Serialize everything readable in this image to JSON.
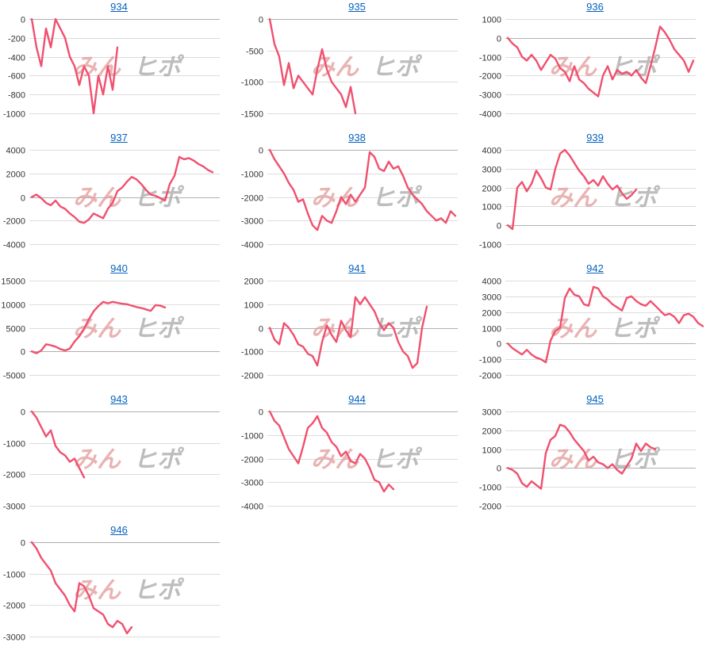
{
  "watermark": {
    "left": "みん",
    "right": "ヒポ"
  },
  "line_color": "#f0506e",
  "chart_data": [
    {
      "type": "line",
      "title": "934",
      "yticks": [
        0,
        -200,
        -400,
        -600,
        -800,
        -1000
      ],
      "ylim": [
        -1000,
        0
      ],
      "series": [
        {
          "values": [
            0,
            -300,
            -500,
            -100,
            -300,
            0,
            -100,
            -200,
            -400,
            -500,
            -700,
            -500,
            -600,
            -1000,
            -600,
            -800,
            -500,
            -750,
            -300
          ]
        }
      ]
    },
    {
      "type": "line",
      "title": "935",
      "yticks": [
        0,
        -500,
        -1000,
        -1500
      ],
      "ylim": [
        -1500,
        0
      ],
      "series": [
        {
          "values": [
            0,
            -400,
            -600,
            -1050,
            -700,
            -1100,
            -900,
            -1000,
            -1100,
            -1200,
            -800,
            -480,
            -800,
            -1000,
            -1100,
            -1200,
            -1400,
            -1080,
            -1500
          ]
        }
      ]
    },
    {
      "type": "line",
      "title": "936",
      "yticks": [
        1000,
        0,
        -1000,
        -2000,
        -3000,
        -4000
      ],
      "ylim": [
        -4000,
        1000
      ],
      "series": [
        {
          "values": [
            0,
            -300,
            -500,
            -1000,
            -1200,
            -900,
            -1200,
            -1700,
            -1300,
            -900,
            -1100,
            -1600,
            -1800,
            -2300,
            -1500,
            -2200,
            -2400,
            -2700,
            -2900,
            -3100,
            -2000,
            -1500,
            -2200,
            -1700,
            -1900,
            -1800,
            -2000,
            -1700,
            -2100,
            -2400,
            -1500,
            -500,
            600,
            300,
            -100,
            -600,
            -900,
            -1200,
            -1800,
            -1200
          ]
        }
      ]
    },
    {
      "type": "line",
      "title": "937",
      "yticks": [
        4000,
        2000,
        0,
        -2000,
        -4000
      ],
      "ylim": [
        -4000,
        4000
      ],
      "series": [
        {
          "values": [
            0,
            200,
            -100,
            -500,
            -700,
            -300,
            -800,
            -1000,
            -1400,
            -1700,
            -2100,
            -2200,
            -1900,
            -1400,
            -1600,
            -1800,
            -1000,
            -500,
            500,
            800,
            1300,
            1700,
            1500,
            1100,
            600,
            200,
            100,
            -100,
            -300,
            1100,
            1800,
            3400,
            3200,
            3300,
            3100,
            2800,
            2600,
            2300,
            2100
          ]
        }
      ]
    },
    {
      "type": "line",
      "title": "938",
      "yticks": [
        0,
        -1000,
        -2000,
        -3000,
        -4000
      ],
      "ylim": [
        -4000,
        0
      ],
      "series": [
        {
          "values": [
            0,
            -400,
            -700,
            -1000,
            -1400,
            -1700,
            -2200,
            -2100,
            -2700,
            -3200,
            -3400,
            -2800,
            -3000,
            -3100,
            -2600,
            -2000,
            -2300,
            -1900,
            -2200,
            -1900,
            -1600,
            -100,
            -300,
            -800,
            -900,
            -500,
            -800,
            -700,
            -1100,
            -1600,
            -1900,
            -2100,
            -2300,
            -2600,
            -2800,
            -3000,
            -2900,
            -3100,
            -2600,
            -2800
          ]
        }
      ]
    },
    {
      "type": "line",
      "title": "939",
      "yticks": [
        4000,
        3000,
        2000,
        1000,
        0,
        -1000
      ],
      "ylim": [
        -1000,
        4000
      ],
      "series": [
        {
          "values": [
            0,
            -200,
            2000,
            2300,
            1800,
            2200,
            2900,
            2500,
            2000,
            1900,
            3000,
            3800,
            4000,
            3700,
            3300,
            2900,
            2600,
            2200,
            2400,
            2100,
            2600,
            2200,
            1900,
            2100,
            1700,
            1400,
            1600,
            1900
          ]
        }
      ]
    },
    {
      "type": "line",
      "title": "940",
      "yticks": [
        15000,
        10000,
        5000,
        0,
        -5000
      ],
      "ylim": [
        -5000,
        15000
      ],
      "series": [
        {
          "values": [
            0,
            -400,
            200,
            1500,
            1300,
            1000,
            500,
            200,
            600,
            2100,
            3200,
            4800,
            6800,
            8500,
            9600,
            10500,
            10200,
            10500,
            10300,
            10100,
            10000,
            9700,
            9400,
            9200,
            8900,
            8600,
            9800,
            9700,
            9300
          ]
        }
      ]
    },
    {
      "type": "line",
      "title": "941",
      "yticks": [
        2000,
        1000,
        0,
        -1000,
        -2000
      ],
      "ylim": [
        -2000,
        2000
      ],
      "series": [
        {
          "values": [
            0,
            -500,
            -700,
            200,
            0,
            -300,
            -700,
            -800,
            -1100,
            -1200,
            -1600,
            -600,
            100,
            -300,
            -600,
            300,
            -100,
            -400,
            1300,
            1000,
            1300,
            1000,
            700,
            200,
            -100,
            200,
            0,
            -600,
            -1000,
            -1200,
            -1700,
            -1500,
            0,
            900
          ]
        }
      ]
    },
    {
      "type": "line",
      "title": "942",
      "yticks": [
        4000,
        3000,
        2000,
        1000,
        0,
        -1000,
        -2000
      ],
      "ylim": [
        -2000,
        4000
      ],
      "series": [
        {
          "values": [
            0,
            -300,
            -500,
            -700,
            -400,
            -700,
            -900,
            -1000,
            -1200,
            200,
            800,
            1000,
            2900,
            3500,
            3100,
            3000,
            2500,
            2400,
            3600,
            3500,
            3000,
            2800,
            2500,
            2300,
            2100,
            2900,
            3000,
            2700,
            2500,
            2400,
            2700,
            2400,
            2100,
            1800,
            1900,
            1700,
            1300,
            1800,
            1900,
            1700,
            1300,
            1100
          ]
        }
      ]
    },
    {
      "type": "line",
      "title": "943",
      "yticks": [
        0,
        -1000,
        -2000,
        -3000
      ],
      "ylim": [
        -3000,
        0
      ],
      "series": [
        {
          "values": [
            0,
            -200,
            -500,
            -800,
            -600,
            -1100,
            -1300,
            -1400,
            -1600,
            -1500,
            -1800,
            -2100
          ]
        }
      ]
    },
    {
      "type": "line",
      "title": "944",
      "yticks": [
        0,
        -1000,
        -2000,
        -3000,
        -4000
      ],
      "ylim": [
        -4000,
        0
      ],
      "series": [
        {
          "values": [
            0,
            -400,
            -600,
            -1100,
            -1600,
            -1900,
            -2200,
            -1500,
            -700,
            -500,
            -200,
            -700,
            -900,
            -1300,
            -1500,
            -1900,
            -1700,
            -2100,
            -2200,
            -1800,
            -2000,
            -2400,
            -2900,
            -3000,
            -3400,
            -3100,
            -3300
          ]
        }
      ]
    },
    {
      "type": "line",
      "title": "945",
      "yticks": [
        3000,
        2000,
        1000,
        0,
        -1000,
        -2000
      ],
      "ylim": [
        -2000,
        3000
      ],
      "series": [
        {
          "values": [
            0,
            -100,
            -300,
            -800,
            -1000,
            -700,
            -900,
            -1100,
            800,
            1500,
            1700,
            2300,
            2200,
            1900,
            1500,
            1200,
            900,
            400,
            600,
            300,
            200,
            0,
            200,
            -100,
            -300,
            100,
            500,
            1300,
            900,
            1300,
            1100,
            1000
          ]
        }
      ]
    },
    {
      "type": "line",
      "title": "946",
      "yticks": [
        0,
        -1000,
        -2000,
        -3000
      ],
      "ylim": [
        -3000,
        0
      ],
      "series": [
        {
          "values": [
            0,
            -200,
            -500,
            -700,
            -900,
            -1300,
            -1500,
            -1700,
            -2000,
            -2200,
            -1300,
            -1400,
            -1700,
            -2100,
            -2200,
            -2300,
            -2600,
            -2700,
            -2500,
            -2600,
            -2900,
            -2700
          ]
        }
      ]
    }
  ]
}
